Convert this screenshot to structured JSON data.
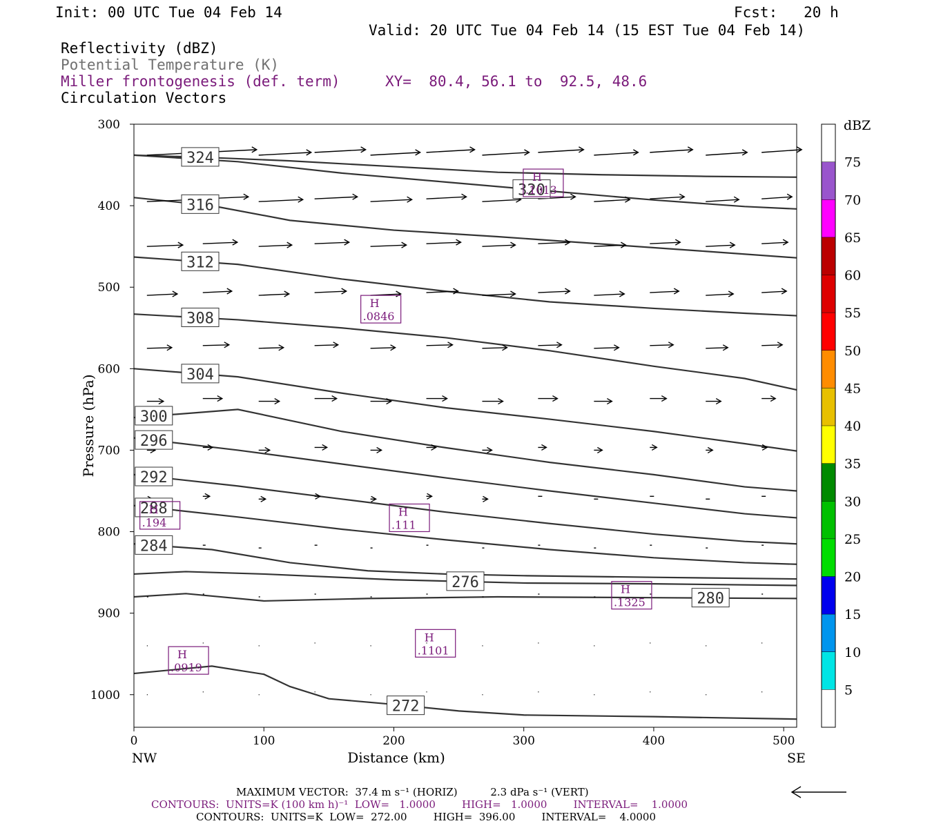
{
  "header": {
    "init": "Init: 00 UTC Tue 04 Feb 14",
    "fcst": "Fcst:   20 h",
    "valid": "Valid: 20 UTC Tue 04 Feb 14 (15 EST Tue 04 Feb 14)",
    "field1": "Reflectivity (dBZ)",
    "field2": "Potential Temperature (K)",
    "field3": "Miller frontogenesis (def. term)",
    "xy": "XY=  80.4, 56.1 to  92.5, 48.6",
    "field4": "Circulation Vectors"
  },
  "footer": {
    "max_vector": "MAXIMUM VECTOR:  37.4 m s⁻¹ (HORIZ)          2.3 dPa s⁻¹ (VERT)",
    "contours_front": "CONTOURS:  UNITS=K (100 km h)⁻¹  LOW=   1.0000        HIGH=   1.0000        INTERVAL=    1.0000",
    "contours_theta": "CONTOURS:  UNITS=K  LOW=  272.00        HIGH=  396.00        INTERVAL=    4.0000"
  },
  "colors": {
    "theta": "#333333",
    "front": "#7a1a7a",
    "vector": "#000000"
  },
  "chart_data": {
    "type": "cross-section",
    "xlabel": "Distance (km)",
    "ylabel": "Pressure (hPa)",
    "xlim": [
      0,
      510
    ],
    "ylim": [
      300,
      1040
    ],
    "x_ticks": [
      0,
      100,
      200,
      300,
      400,
      500
    ],
    "y_ticks": [
      300,
      400,
      500,
      600,
      700,
      800,
      900,
      1000
    ],
    "x_endpoint_labels": [
      "NW",
      "SE"
    ],
    "colorbar": {
      "title": "dBZ",
      "levels": [
        5,
        10,
        15,
        20,
        25,
        30,
        35,
        40,
        45,
        50,
        55,
        60,
        65,
        70,
        75
      ],
      "colors": [
        "#ffffff",
        "#00e5e5",
        "#0095ee",
        "#0000ee",
        "#00dd00",
        "#00c000",
        "#008a00",
        "#ffff00",
        "#e8c000",
        "#ff8c00",
        "#ff0000",
        "#dd0000",
        "#bb0000",
        "#ff00ff",
        "#9955cc",
        "#ffffff"
      ]
    },
    "theta_contours": [
      {
        "value": 324,
        "label": "324",
        "points": [
          [
            0,
            338
          ],
          [
            60,
            341
          ],
          [
            120,
            345
          ],
          [
            200,
            352
          ],
          [
            280,
            359
          ],
          [
            360,
            362
          ],
          [
            440,
            364
          ],
          [
            510,
            365
          ]
        ]
      },
      {
        "value": 320,
        "label": "320",
        "points": [
          [
            0,
            338
          ],
          [
            80,
            346
          ],
          [
            160,
            360
          ],
          [
            240,
            371
          ],
          [
            320,
            382
          ],
          [
            400,
            393
          ],
          [
            470,
            401
          ],
          [
            510,
            404
          ]
        ]
      },
      {
        "value": 316,
        "label": "316",
        "points": [
          [
            0,
            390
          ],
          [
            60,
            400
          ],
          [
            120,
            418
          ],
          [
            200,
            430
          ],
          [
            280,
            438
          ],
          [
            360,
            447
          ],
          [
            440,
            456
          ],
          [
            510,
            464
          ]
        ]
      },
      {
        "value": 312,
        "label": "312",
        "points": [
          [
            0,
            463
          ],
          [
            80,
            472
          ],
          [
            160,
            490
          ],
          [
            240,
            505
          ],
          [
            320,
            518
          ],
          [
            400,
            526
          ],
          [
            470,
            532
          ],
          [
            510,
            535
          ]
        ]
      },
      {
        "value": 308,
        "label": "308",
        "points": [
          [
            0,
            533
          ],
          [
            80,
            540
          ],
          [
            160,
            550
          ],
          [
            240,
            562
          ],
          [
            320,
            578
          ],
          [
            400,
            597
          ],
          [
            470,
            612
          ],
          [
            510,
            626
          ]
        ]
      },
      {
        "value": 304,
        "label": "304",
        "points": [
          [
            0,
            600
          ],
          [
            80,
            610
          ],
          [
            160,
            630
          ],
          [
            240,
            648
          ],
          [
            320,
            662
          ],
          [
            400,
            677
          ],
          [
            470,
            692
          ],
          [
            510,
            701
          ]
        ]
      },
      {
        "value": 300,
        "label": "300",
        "points": [
          [
            0,
            660
          ],
          [
            80,
            650
          ],
          [
            160,
            677
          ],
          [
            240,
            697
          ],
          [
            320,
            715
          ],
          [
            400,
            730
          ],
          [
            470,
            745
          ],
          [
            510,
            750
          ]
        ]
      },
      {
        "value": 296,
        "label": "296",
        "points": [
          [
            0,
            685
          ],
          [
            80,
            700
          ],
          [
            160,
            717
          ],
          [
            240,
            734
          ],
          [
            320,
            750
          ],
          [
            400,
            765
          ],
          [
            470,
            778
          ],
          [
            510,
            783
          ]
        ]
      },
      {
        "value": 292,
        "label": "292",
        "points": [
          [
            0,
            730
          ],
          [
            80,
            744
          ],
          [
            160,
            760
          ],
          [
            240,
            776
          ],
          [
            320,
            790
          ],
          [
            400,
            803
          ],
          [
            470,
            812
          ],
          [
            510,
            815
          ]
        ]
      },
      {
        "value": 288,
        "label": "288",
        "points": [
          [
            0,
            768
          ],
          [
            80,
            782
          ],
          [
            160,
            797
          ],
          [
            240,
            810
          ],
          [
            320,
            822
          ],
          [
            400,
            832
          ],
          [
            470,
            838
          ],
          [
            510,
            840
          ]
        ]
      },
      {
        "value": 284,
        "label": "284",
        "points": [
          [
            0,
            815
          ],
          [
            60,
            822
          ],
          [
            120,
            838
          ],
          [
            180,
            848
          ],
          [
            240,
            852
          ],
          [
            300,
            854
          ],
          [
            400,
            856
          ],
          [
            510,
            858
          ]
        ]
      },
      {
        "value": 280,
        "label": "280",
        "points": [
          [
            0,
            880
          ],
          [
            40,
            876
          ],
          [
            100,
            885
          ],
          [
            180,
            882
          ],
          [
            280,
            880
          ],
          [
            400,
            881
          ],
          [
            510,
            882
          ]
        ]
      },
      {
        "value": 276,
        "label": "276",
        "points": [
          [
            0,
            852
          ],
          [
            40,
            849
          ],
          [
            100,
            852
          ],
          [
            200,
            859
          ],
          [
            300,
            863
          ],
          [
            400,
            864
          ],
          [
            510,
            866
          ]
        ]
      },
      {
        "value": 272,
        "label": "272",
        "points": [
          [
            0,
            974
          ],
          [
            40,
            968
          ],
          [
            60,
            965
          ],
          [
            100,
            975
          ],
          [
            120,
            990
          ],
          [
            150,
            1005
          ],
          [
            200,
            1012
          ],
          [
            250,
            1020
          ],
          [
            300,
            1025
          ],
          [
            400,
            1027
          ],
          [
            510,
            1030
          ]
        ]
      }
    ],
    "theta_label_positions_note": "labels placed along contours",
    "frontogenesis_maxima": [
      {
        "label": "H",
        "value": ".1013",
        "x": 315,
        "p": 372
      },
      {
        "label": "H",
        "value": ".0846",
        "x": 190,
        "p": 527
      },
      {
        "label": "H",
        "value": ".111",
        "x": 212,
        "p": 783
      },
      {
        "label": "H",
        "value": ".194",
        "x": 20,
        "p": 780
      },
      {
        "label": "H",
        "value": ".1325",
        "x": 383,
        "p": 878
      },
      {
        "label": "H",
        "value": ".1101",
        "x": 232,
        "p": 937
      },
      {
        "label": "H",
        "value": ".0919",
        "x": 42,
        "p": 958
      }
    ],
    "max_vector_horiz": 37.4,
    "max_vector_vert": 2.3
  }
}
